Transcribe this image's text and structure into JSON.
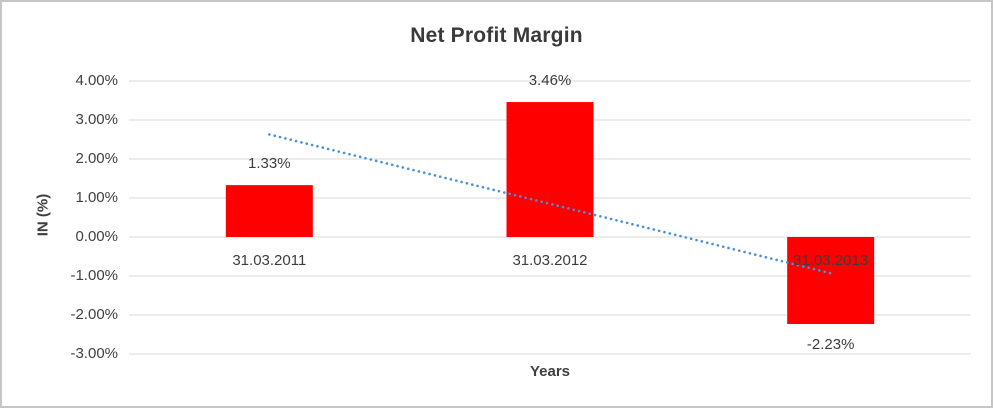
{
  "window": {
    "background_color": "#ffffff",
    "border_color": "#c6c6c6"
  },
  "chart_data": {
    "type": "bar",
    "title": "Net Profit Margin",
    "xlabel": "Years",
    "ylabel": "IN (%)",
    "categories": [
      "31.03.2011",
      "31.03.2012",
      "31.03.2013"
    ],
    "values": [
      1.33,
      3.46,
      -2.23
    ],
    "value_labels": [
      "1.33%",
      "3.46%",
      "-2.23%"
    ],
    "y_ticks": [
      "4.00%",
      "3.00%",
      "2.00%",
      "1.00%",
      "0.00%",
      "-1.00%",
      "-2.00%",
      "-3.00%"
    ],
    "y_tick_values": [
      4,
      3,
      2,
      1,
      0,
      -1,
      -2,
      -3
    ],
    "ylim": [
      -3,
      4
    ],
    "grid": true,
    "legend": false,
    "bar_color": "#ff0000",
    "gridline_color": "#d9d9d9",
    "text_color": "#3d3d3d",
    "trendline": {
      "style": "dotted",
      "color": "#4a90d2",
      "start_value": 2.63,
      "end_value": -0.93
    }
  }
}
